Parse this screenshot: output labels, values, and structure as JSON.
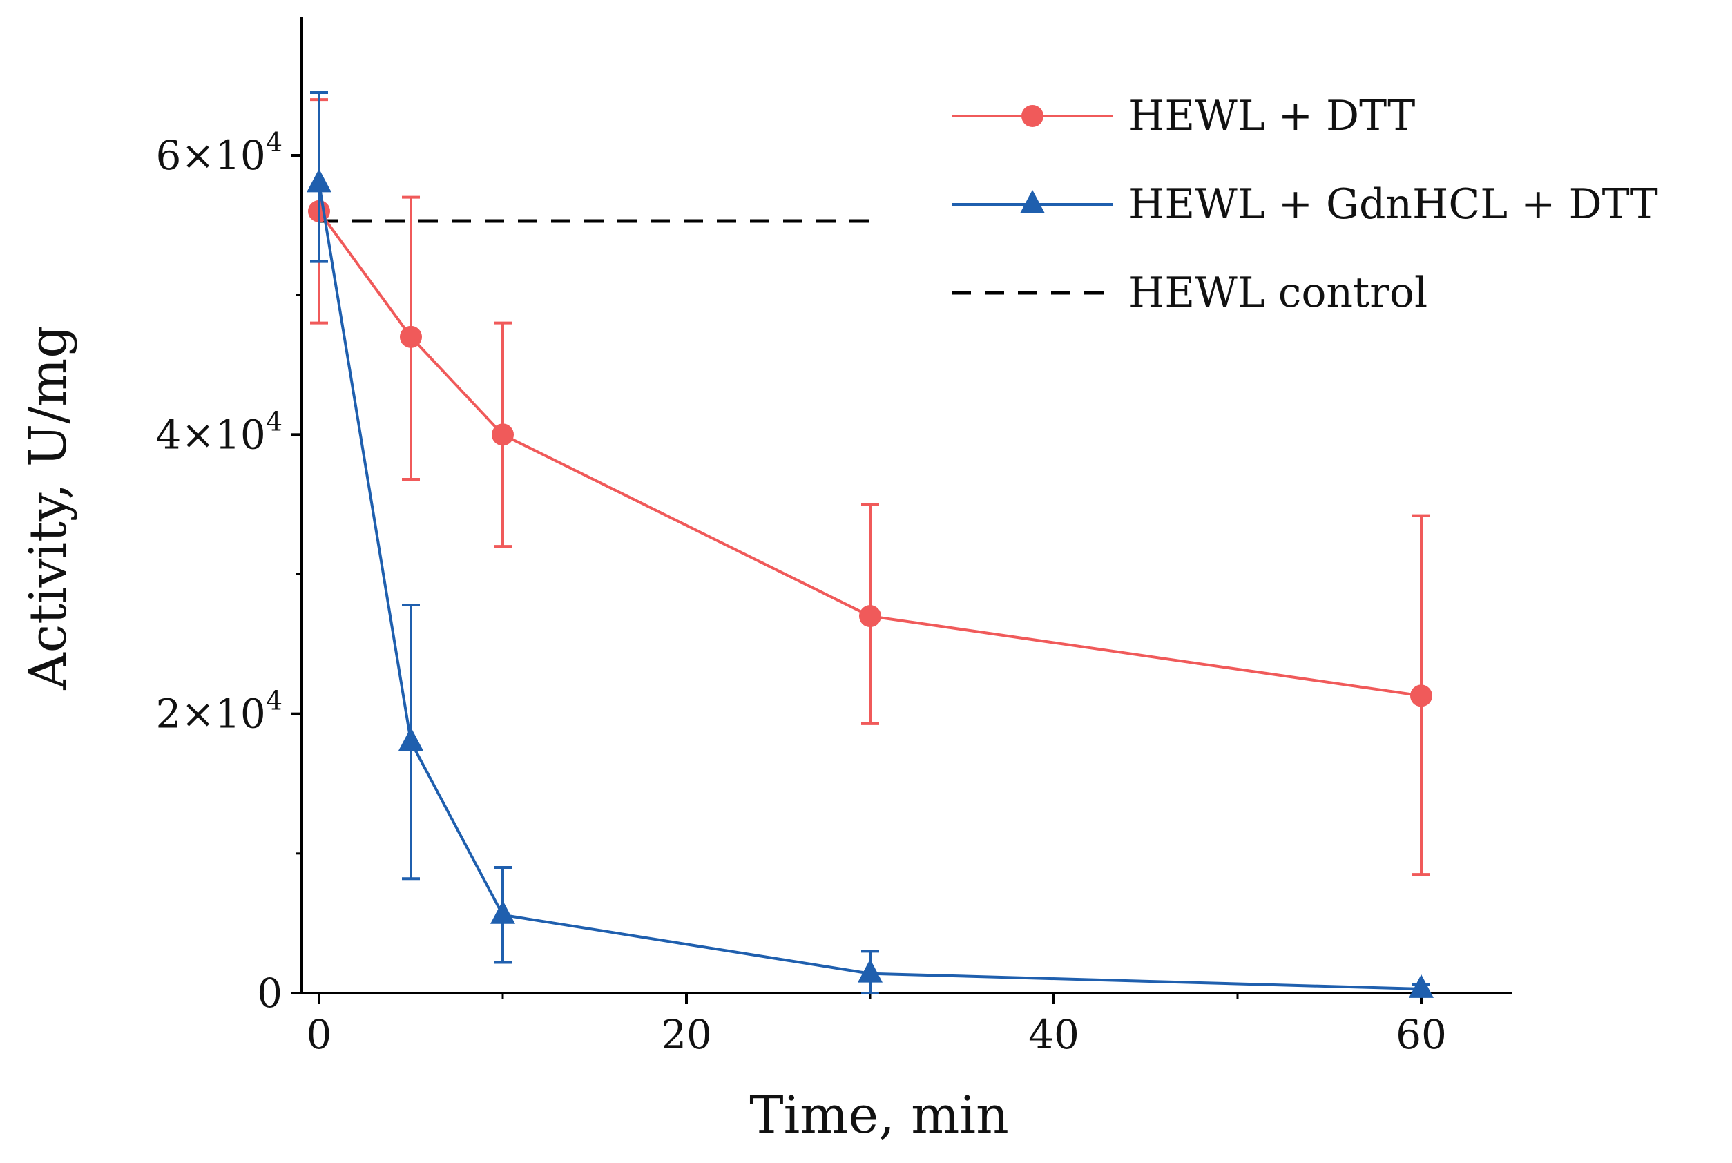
{
  "chart_data": {
    "type": "line",
    "title": "",
    "xlabel": "Time, min",
    "ylabel": "Activity, U/mg",
    "xlim": [
      -1,
      65
    ],
    "ylim": [
      0,
      70000
    ],
    "x_ticks": [
      0,
      20,
      40,
      60
    ],
    "x_tick_labels": [
      "0",
      "20",
      "40",
      "60"
    ],
    "x_minor_ticks": [
      10,
      30,
      50
    ],
    "y_ticks": [
      0,
      20000,
      40000,
      60000
    ],
    "y_tick_labels": [
      {
        "base": "0",
        "exp": ""
      },
      {
        "base": "2×10",
        "exp": "4"
      },
      {
        "base": "4×10",
        "exp": "4"
      },
      {
        "base": "6×10",
        "exp": "4"
      }
    ],
    "legend_position": "top-right",
    "series": [
      {
        "name": "HEWL + DTT",
        "color": "#f05a5a",
        "marker": "circle",
        "x": [
          0,
          5,
          10,
          30,
          60
        ],
        "values": [
          56000,
          47000,
          40000,
          27000,
          21300
        ],
        "err_low": [
          48000,
          36800,
          32000,
          19300,
          8500
        ],
        "err_high": [
          64000,
          57000,
          48000,
          35000,
          34200
        ]
      },
      {
        "name": "HEWL + GdnHCL + DTT",
        "color": "#1f5fae",
        "marker": "triangle",
        "x": [
          0,
          5,
          10,
          30,
          60
        ],
        "values": [
          58000,
          18000,
          5600,
          1400,
          300
        ],
        "err_low": [
          52400,
          8200,
          2200,
          0,
          0
        ],
        "err_high": [
          64500,
          27800,
          9000,
          3000,
          600
        ]
      },
      {
        "name": "HEWL control",
        "color": "#000000",
        "marker": "none",
        "line_style": "dashed",
        "x": [
          0,
          30
        ],
        "values": [
          55300,
          55300
        ]
      }
    ]
  }
}
